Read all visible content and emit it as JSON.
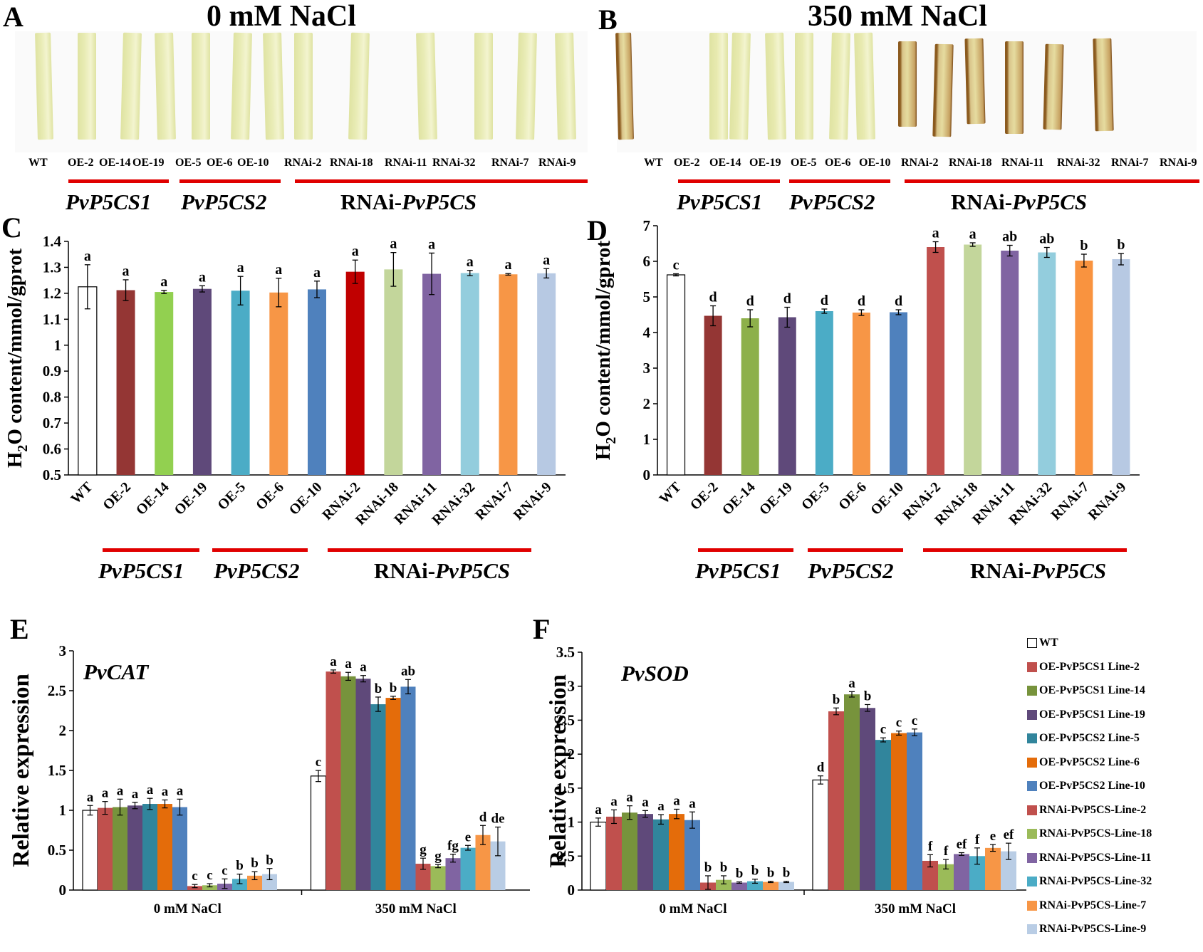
{
  "panel_labels": {
    "A": "A",
    "B": "B",
    "C": "C",
    "D": "D",
    "E": "E",
    "F": "F"
  },
  "photo_panels": [
    {
      "title": "0 mM NaCl",
      "lines": [
        "WT",
        "OE-2",
        "OE-14",
        "OE-19",
        "OE-5",
        "OE-6",
        "OE-10",
        "RNAi-2",
        "RNAi-18",
        "RNAi-11",
        "RNAi-32",
        "RNAi-7",
        "RNAi-9"
      ],
      "leaf_color": "#e9ecb6",
      "stained": []
    },
    {
      "title": "350 mM NaCl",
      "lines": [
        "WT",
        "OE-2",
        "OE-14",
        "OE-19",
        "OE-5",
        "OE-6",
        "OE-10",
        "RNAi-2",
        "RNAi-18",
        "RNAi-11",
        "RNAi-32",
        "RNAi-7",
        "RNAi-9"
      ],
      "leaf_color": "#e8eab0",
      "stained": [
        0,
        7,
        8,
        9,
        10,
        11,
        12
      ]
    }
  ],
  "groups": {
    "g1": "PvP5CS1",
    "g2": "PvP5CS2",
    "g3_prefix": "RNAi-",
    "g3": "PvP5CS"
  },
  "colors": [
    "#ffffff",
    "#943634",
    "#8db04a",
    "#5f497a",
    "#4bacc6",
    "#f79646",
    "#4f81bd",
    "#c0504d",
    "#c3d69b",
    "#8064a2",
    "#93cddd",
    "#f9933f",
    "#b7c9e3"
  ],
  "colors_C": [
    "#ffffff",
    "#943634",
    "#92d050",
    "#5f497a",
    "#4bacc6",
    "#f79646",
    "#4f81bd",
    "#c00000",
    "#c3d69b",
    "#8064a2",
    "#93cddd",
    "#f79646",
    "#b7c9e3"
  ],
  "colors_EF": [
    "#ffffff",
    "#c0504d",
    "#77933c",
    "#5f497a",
    "#31859c",
    "#e46c0a",
    "#4f81bd",
    "#c0504d",
    "#9bbb59",
    "#8064a2",
    "#4bacc6",
    "#f79646",
    "#b9cde5"
  ],
  "legend": [
    "WT",
    "OE-PvP5CS1 Line-2",
    "OE-PvP5CS1 Line-14",
    "OE-PvP5CS1 Line-19",
    "OE-PvP5CS2 Line-5",
    "OE-PvP5CS2 Line-6",
    "OE-PvP5CS2 Line-10",
    "RNAi-PvP5CS-Line-2",
    "RNAi-PvP5CS-Line-18",
    "RNAi-PvP5CS-Line-11",
    "RNAi-PvP5CS-Line-32",
    "RNAi-PvP5CS-Line-7",
    "RNAi-PvP5CS-Line-9"
  ],
  "chart_data": [
    {
      "panel": "C",
      "type": "bar",
      "ylabel_main": "H",
      "ylabel_sub": "2",
      "ylabel_o": "O",
      "ylabel_rest": " content/mmol/gprot",
      "categories": [
        "WT",
        "OE-2",
        "OE-14",
        "OE-19",
        "OE-5",
        "OE-6",
        "OE-10",
        "RNAi-2",
        "RNAi-18",
        "RNAi-11",
        "RNAi-32",
        "RNAi-7",
        "RNAi-9"
      ],
      "values": [
        1.225,
        1.212,
        1.205,
        1.217,
        1.21,
        1.203,
        1.215,
        1.283,
        1.292,
        1.275,
        1.278,
        1.273,
        1.277
      ],
      "errors": [
        0.085,
        0.04,
        0.006,
        0.012,
        0.055,
        0.055,
        0.032,
        0.045,
        0.065,
        0.08,
        0.01,
        0.003,
        0.018
      ],
      "letters": [
        "a",
        "a",
        "a",
        "a",
        "a",
        "a",
        "a",
        "a",
        "a",
        "a",
        "a",
        "a",
        "a"
      ],
      "ylim": [
        0.5,
        1.4
      ],
      "yticks": [
        "0.5",
        "0.6",
        "0.7",
        "0.8",
        "0.9",
        "1",
        "1.1",
        "1.2",
        "1.3",
        "1.4"
      ]
    },
    {
      "panel": "D",
      "type": "bar",
      "ylabel_main": "H",
      "ylabel_sub": "2",
      "ylabel_o": "O",
      "ylabel_rest": " content/mmol/gprot",
      "categories": [
        "WT",
        "OE-2",
        "OE-14",
        "OE-19",
        "OE-5",
        "OE-6",
        "OE-10",
        "RNAi-2",
        "RNAi-18",
        "RNAi-11",
        "RNAi-32",
        "RNAi-7",
        "RNAi-9"
      ],
      "values": [
        5.62,
        4.47,
        4.4,
        4.43,
        4.6,
        4.56,
        4.57,
        6.4,
        6.47,
        6.3,
        6.25,
        6.02,
        6.06
      ],
      "errors": [
        0.03,
        0.28,
        0.24,
        0.28,
        0.06,
        0.08,
        0.07,
        0.15,
        0.05,
        0.15,
        0.14,
        0.18,
        0.16
      ],
      "letters": [
        "c",
        "d",
        "d",
        "d",
        "d",
        "d",
        "d",
        "a",
        "a",
        "ab",
        "ab",
        "b",
        "b"
      ],
      "ylim": [
        0,
        7
      ],
      "yticks": [
        "0",
        "1",
        "2",
        "3",
        "4",
        "5",
        "6",
        "7"
      ]
    },
    {
      "panel": "E",
      "type": "bar",
      "title": "PvCAT",
      "ylabel": "Relative expression",
      "categories": [
        "0 mM NaCl",
        "350 mM NaCl"
      ],
      "series_values": [
        [
          1.0,
          1.03,
          1.04,
          1.06,
          1.08,
          1.08,
          1.04
        ],
        [
          0.05,
          0.06,
          0.08,
          0.14,
          0.18,
          0.2
        ],
        [
          1.43,
          2.74,
          2.68,
          2.65,
          2.33,
          2.41,
          2.55
        ],
        [
          0.33,
          0.3,
          0.4,
          0.53,
          0.69,
          0.61
        ]
      ],
      "series_errors": [
        [
          0.06,
          0.08,
          0.1,
          0.04,
          0.07,
          0.05,
          0.1
        ],
        [
          0.02,
          0.02,
          0.06,
          0.06,
          0.05,
          0.07
        ],
        [
          0.07,
          0.02,
          0.05,
          0.04,
          0.09,
          0.02,
          0.09
        ],
        [
          0.07,
          0.02,
          0.05,
          0.03,
          0.12,
          0.18
        ]
      ],
      "letters": [
        [
          "a",
          "a",
          "a",
          "a",
          "a",
          "a",
          "a"
        ],
        [
          "c",
          "c",
          "c",
          "b",
          "b",
          "b"
        ],
        [
          "c",
          "a",
          "a",
          "a",
          "b",
          "b",
          "ab"
        ],
        [
          "g",
          "g",
          "fg",
          "e",
          "d",
          "de"
        ]
      ],
      "ylim": [
        0,
        3
      ],
      "yticks": [
        "0",
        "0.5",
        "1",
        "1.5",
        "2",
        "2.5",
        "3"
      ]
    },
    {
      "panel": "F",
      "type": "bar",
      "title": "PvSOD",
      "ylabel": "Relative expression",
      "categories": [
        "0 mM NaCl",
        "350 mM NaCl"
      ],
      "series_values": [
        [
          1.0,
          1.08,
          1.14,
          1.12,
          1.04,
          1.12,
          1.03
        ],
        [
          0.11,
          0.15,
          0.11,
          0.13,
          0.12,
          0.12
        ],
        [
          1.62,
          2.63,
          2.88,
          2.68,
          2.21,
          2.31,
          2.32
        ],
        [
          0.43,
          0.38,
          0.53,
          0.5,
          0.62,
          0.57
        ]
      ],
      "series_errors": [
        [
          0.06,
          0.1,
          0.1,
          0.05,
          0.07,
          0.07,
          0.12
        ],
        [
          0.1,
          0.06,
          0.01,
          0.03,
          0.01,
          0.01
        ],
        [
          0.06,
          0.05,
          0.04,
          0.05,
          0.03,
          0.03,
          0.05
        ],
        [
          0.09,
          0.07,
          0.02,
          0.12,
          0.05,
          0.12
        ]
      ],
      "letters": [
        [
          "a",
          "a",
          "a",
          "a",
          "a",
          "a",
          "a"
        ],
        [
          "b",
          "b",
          "b",
          "b",
          "b",
          "b"
        ],
        [
          "d",
          "b",
          "a",
          "b",
          "c",
          "c",
          "c"
        ],
        [
          "f",
          "f",
          "ef",
          "f",
          "e",
          "ef"
        ]
      ],
      "ylim": [
        0,
        3.5
      ],
      "yticks": [
        "0",
        "0.5",
        "1",
        "1.5",
        "2",
        "2.5",
        "3",
        "3.5"
      ]
    }
  ]
}
